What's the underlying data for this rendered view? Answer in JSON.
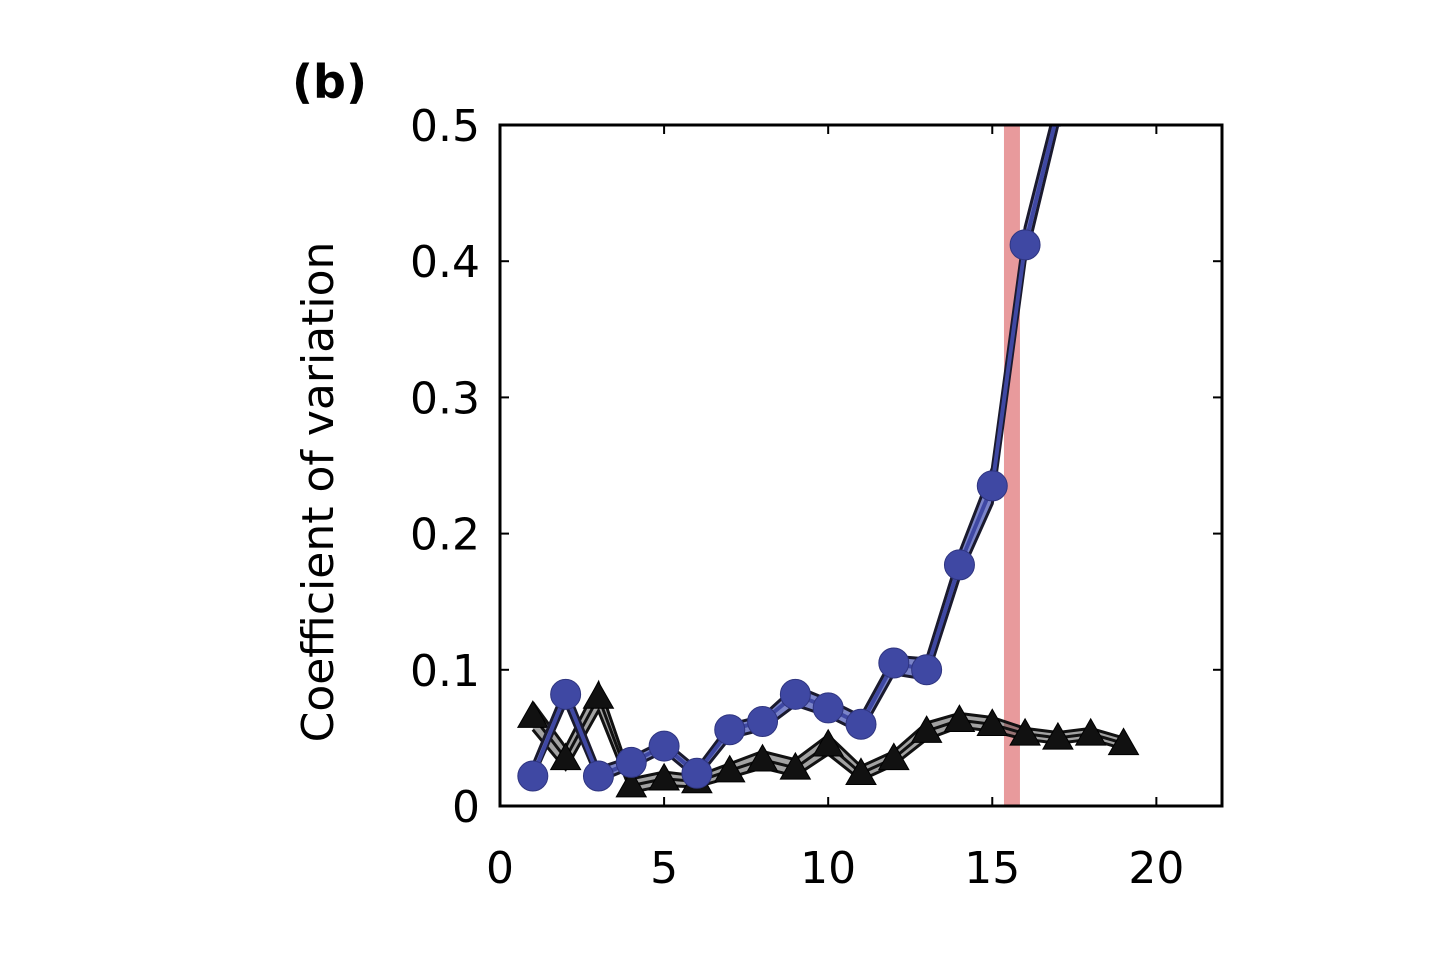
{
  "chart_data": {
    "type": "line",
    "panel_label": "(b)",
    "title": "",
    "xlabel": "",
    "ylabel": "Coefficient of variation",
    "xlim": [
      0,
      22
    ],
    "ylim": [
      0,
      0.5
    ],
    "x_ticks": [
      0,
      5,
      10,
      15,
      20
    ],
    "y_ticks": [
      0,
      0.1,
      0.2,
      0.3,
      0.4,
      0.5
    ],
    "x_tick_labels": [
      "0",
      "5",
      "10",
      "15",
      "20"
    ],
    "y_tick_labels": [
      "0",
      "0.1",
      "0.2",
      "0.3",
      "0.4",
      "0.5"
    ],
    "grid": false,
    "highlight_band": {
      "x": 15.6,
      "color": "#e89a9c"
    },
    "series": [
      {
        "marker": "circle",
        "color": "#3f48a3",
        "band_color": "#7b84c9",
        "x": [
          1,
          2,
          3,
          4,
          5,
          6,
          7,
          8,
          9,
          10,
          11,
          12,
          13,
          14,
          15,
          16,
          17
        ],
        "values": [
          0.022,
          0.082,
          0.022,
          0.032,
          0.044,
          0.024,
          0.056,
          0.062,
          0.082,
          0.072,
          0.06,
          0.105,
          0.1,
          0.177,
          0.235,
          0.412,
          0.51
        ],
        "band_lower": [
          0.02,
          0.075,
          0.018,
          0.028,
          0.04,
          0.02,
          0.05,
          0.056,
          0.074,
          0.066,
          0.054,
          0.097,
          0.093,
          0.168,
          0.222,
          0.4,
          0.5
        ],
        "band_upper": [
          0.03,
          0.088,
          0.028,
          0.036,
          0.048,
          0.028,
          0.06,
          0.066,
          0.088,
          0.078,
          0.066,
          0.11,
          0.108,
          0.186,
          0.248,
          0.425,
          0.52
        ]
      },
      {
        "marker": "triangle",
        "color": "#111111",
        "x": [
          1,
          2,
          3,
          4,
          5,
          6,
          7,
          8,
          9,
          10,
          11,
          12,
          13,
          14,
          15,
          16,
          17,
          18,
          19
        ],
        "values": [
          0.066,
          0.035,
          0.08,
          0.015,
          0.02,
          0.018,
          0.026,
          0.034,
          0.028,
          0.045,
          0.024,
          0.035,
          0.055,
          0.063,
          0.06,
          0.053,
          0.05,
          0.053,
          0.046
        ],
        "spread": [
          0.02,
          0.016,
          0.02,
          0.01,
          0.01,
          0.008,
          0.01,
          0.012,
          0.012,
          0.014,
          0.01,
          0.01,
          0.012,
          0.01,
          0.01,
          0.008,
          0.008,
          0.008,
          0.008
        ]
      }
    ]
  }
}
